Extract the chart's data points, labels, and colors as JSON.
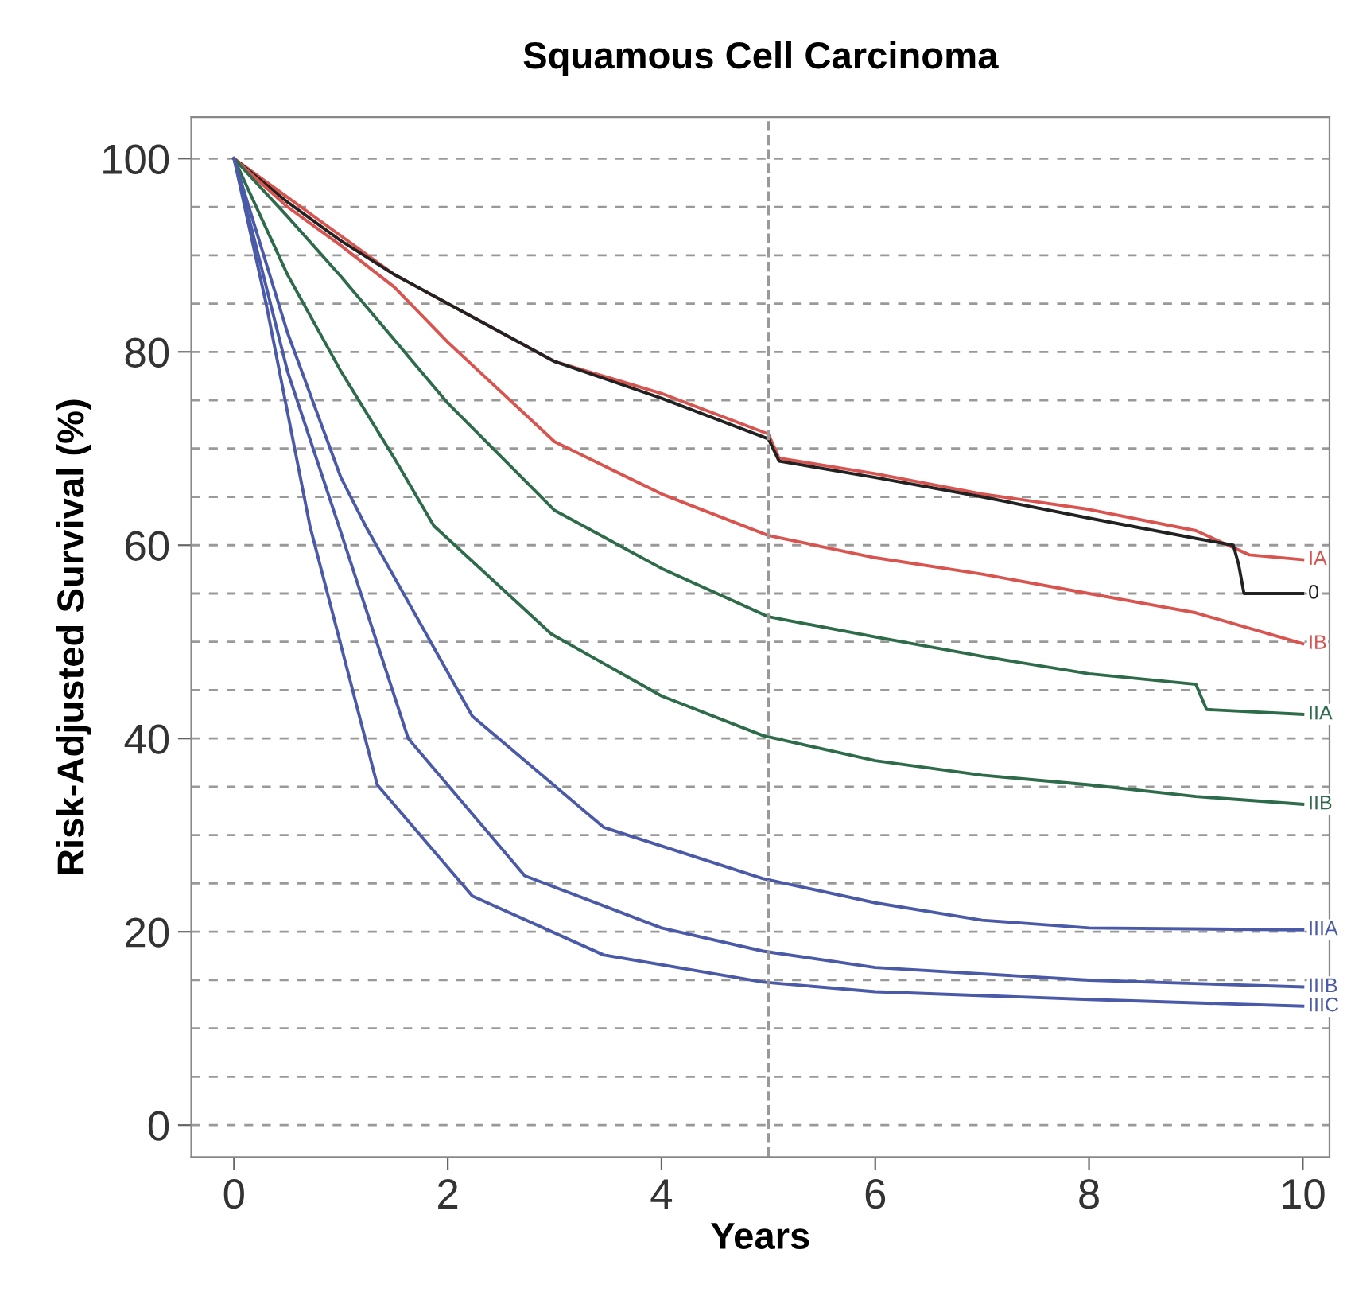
{
  "chart_data": {
    "type": "line",
    "title": "Squamous Cell Carcinoma",
    "xlabel": "Years",
    "ylabel": "Risk-Adjusted Survival (%)",
    "xlim": [
      -0.4,
      10.25
    ],
    "ylim": [
      -3.3,
      104.3
    ],
    "xticks": [
      0,
      2,
      4,
      6,
      8,
      10
    ],
    "yticks": [
      0,
      {
        "value": 5,
        "label": null
      },
      {
        "value": 10,
        "label": null
      },
      {
        "value": 15,
        "label": null
      },
      20,
      {
        "value": 25,
        "label": null
      },
      {
        "value": 30,
        "label": null
      },
      {
        "value": 35,
        "label": null
      },
      40,
      {
        "value": 45,
        "label": null
      },
      {
        "value": 50,
        "label": null
      },
      {
        "value": 55,
        "label": null
      },
      60,
      {
        "value": 65,
        "label": null
      },
      {
        "value": 70,
        "label": null
      },
      {
        "value": 75,
        "label": null
      },
      80,
      {
        "value": 85,
        "label": null
      },
      {
        "value": 90,
        "label": null
      },
      {
        "value": 95,
        "label": null
      },
      100
    ],
    "grid": "y",
    "legend": false,
    "marker": "none",
    "line_style": "solid",
    "ref_lines": [
      {
        "axis": "x",
        "value": 5,
        "line_style": "dashed",
        "color": "#999999"
      }
    ],
    "series": [
      {
        "name": "IA",
        "color": "#d9534f",
        "x": [
          0,
          0.5,
          1,
          1.5,
          2,
          3,
          4,
          5,
          5.1,
          6,
          7,
          8,
          9,
          9.5,
          10
        ],
        "values": [
          100,
          96,
          92,
          88,
          85,
          79,
          75.7,
          71.5,
          69,
          67.4,
          65.3,
          63.7,
          61.5,
          59,
          58.5
        ]
      },
      {
        "name": "0",
        "color": "#222222",
        "x": [
          0,
          0.5,
          1,
          1.5,
          2,
          3,
          4,
          5,
          5.1,
          6,
          7,
          8,
          9,
          9.35,
          9.4,
          9.45,
          10
        ],
        "values": [
          100,
          95.5,
          91.5,
          88,
          85,
          79,
          75.2,
          71,
          68.7,
          67,
          65,
          62.8,
          60.7,
          60,
          58,
          55,
          55
        ]
      },
      {
        "name": "IB",
        "color": "#d9534f",
        "x": [
          0,
          0.5,
          1,
          1.5,
          2,
          3,
          4,
          5,
          6,
          7,
          8,
          9,
          10
        ],
        "values": [
          100,
          95,
          91,
          86.7,
          81,
          70.7,
          65.3,
          61,
          58.7,
          57,
          55,
          53,
          49.8
        ]
      },
      {
        "name": "IIA",
        "color": "#2e6b4a",
        "x": [
          0,
          0.5,
          1,
          2,
          3,
          4,
          5,
          6,
          7,
          8,
          9,
          9.1,
          10
        ],
        "values": [
          100,
          94,
          87.8,
          74.7,
          63.6,
          57.6,
          52.6,
          50.5,
          48.5,
          46.7,
          45.6,
          43,
          42.5
        ]
      },
      {
        "name": "IIB",
        "color": "#2e6b4a",
        "x": [
          0,
          0.5,
          1,
          1.5,
          1.87,
          2.97,
          4,
          4.95,
          6,
          7,
          8,
          9,
          10
        ],
        "values": [
          100,
          88,
          78,
          69,
          62,
          50.8,
          44.4,
          40.3,
          37.7,
          36.2,
          35.2,
          34,
          33.2
        ]
      },
      {
        "name": "IIIA",
        "color": "#4a5aa8",
        "x": [
          0,
          0.5,
          1,
          1.23,
          2.23,
          3.46,
          4.95,
          6,
          7,
          8,
          10
        ],
        "values": [
          100,
          82,
          67,
          62,
          42.3,
          30.8,
          25.5,
          23,
          21.2,
          20.4,
          20.2
        ]
      },
      {
        "name": "IIIB",
        "color": "#4a5aa8",
        "x": [
          0,
          0.5,
          0.98,
          1.63,
          2.72,
          4,
          4.95,
          6,
          8,
          10
        ],
        "values": [
          100,
          78,
          62,
          40,
          25.8,
          20.4,
          18,
          16.3,
          15,
          14.3
        ]
      },
      {
        "name": "IIIC",
        "color": "#4a5aa8",
        "x": [
          0,
          0.3,
          0.71,
          1.34,
          2.23,
          3.46,
          4.95,
          6,
          8,
          10
        ],
        "values": [
          100,
          85,
          62,
          35.2,
          23.7,
          17.6,
          14.8,
          13.8,
          13,
          12.3
        ]
      }
    ]
  }
}
